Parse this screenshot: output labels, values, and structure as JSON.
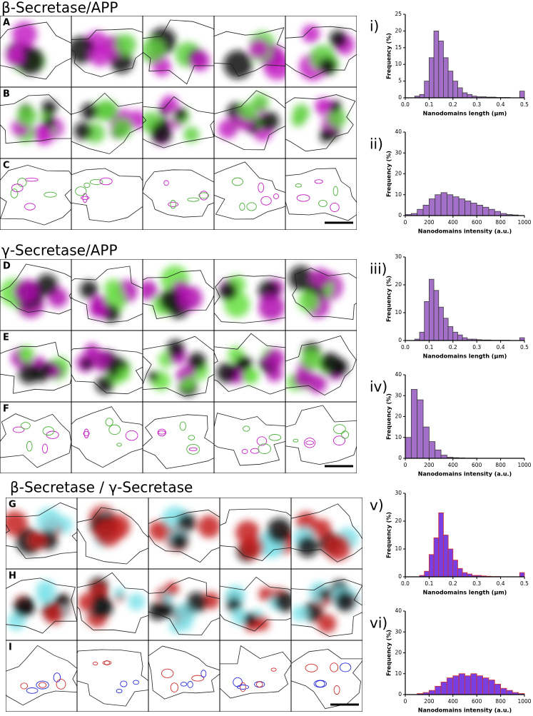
{
  "figure": {
    "sections": [
      {
        "title": "β-Secretase/APP",
        "rows": [
          "A",
          "B",
          "C"
        ]
      },
      {
        "title": "γ-Secretase/APP",
        "rows": [
          "D",
          "E",
          "F"
        ]
      },
      {
        "title": "β-Secretase / γ-Secretase",
        "rows": [
          "G",
          "H",
          "I"
        ]
      }
    ]
  },
  "chart_data": [
    {
      "type": "histogram",
      "label": "i)",
      "xlabel": "Nanodomains length (µm)",
      "ylabel": "Frequency (%)",
      "bins": [
        0,
        0.02,
        0.04,
        0.06,
        0.08,
        0.1,
        0.12,
        0.14,
        0.16,
        0.18,
        0.2,
        0.22,
        0.24,
        0.26,
        0.28,
        0.3,
        0.32,
        0.34,
        0.36,
        0.38,
        0.4,
        0.42,
        0.44,
        0.46,
        0.48,
        0.5
      ],
      "values": [
        0,
        0,
        0.5,
        1,
        5,
        12,
        20,
        17,
        12,
        8,
        5,
        3,
        1.5,
        1,
        0.5,
        0.3,
        0.3,
        0.2,
        0.2,
        0.1,
        0.1,
        0.1,
        0,
        0,
        2
      ],
      "xlim": [
        0,
        0.5
      ],
      "ylim": [
        0,
        25
      ],
      "xticks": [
        {
          "value": 0,
          "label": "0.0"
        },
        0.1,
        0.2,
        0.3,
        0.4,
        0.5
      ],
      "yticks": [
        0,
        5,
        10,
        15,
        20,
        25
      ],
      "color": "#a36fc9",
      "edgecolor": "#3d3d3d"
    },
    {
      "type": "histogram",
      "label": "ii)",
      "xlabel": "Nanodomains intensity (a.u.)",
      "ylabel": "Frequency (%)",
      "bins": [
        0,
        50,
        100,
        150,
        200,
        250,
        300,
        350,
        400,
        450,
        500,
        550,
        600,
        650,
        700,
        750,
        800,
        850,
        900,
        950,
        1000
      ],
      "values": [
        0.5,
        1,
        3,
        5,
        8,
        10,
        11,
        10,
        9,
        8,
        7,
        6,
        5,
        4,
        3,
        2,
        1,
        0.5,
        0.3,
        0
      ],
      "xlim": [
        0,
        1000
      ],
      "ylim": [
        0,
        40
      ],
      "xticks": [
        0,
        200,
        400,
        600,
        800,
        1000
      ],
      "yticks": [
        0,
        10,
        20,
        30,
        40
      ],
      "color": "#a36fc9",
      "edgecolor": "#3d3d3d"
    },
    {
      "type": "histogram",
      "label": "iii)",
      "xlabel": "Nanodomains length (µm)",
      "ylabel": "Frequency (%)",
      "bins": [
        0,
        0.02,
        0.04,
        0.06,
        0.08,
        0.1,
        0.12,
        0.14,
        0.16,
        0.18,
        0.2,
        0.22,
        0.24,
        0.26,
        0.28,
        0.3,
        0.32,
        0.34,
        0.36,
        0.38,
        0.4,
        0.42,
        0.44,
        0.46,
        0.48,
        0.5
      ],
      "values": [
        0,
        0,
        0.5,
        3,
        14,
        22,
        18,
        12,
        8,
        5,
        3,
        2,
        1,
        0.5,
        0.5,
        0.3,
        0.2,
        0.2,
        0.1,
        0.1,
        0.1,
        0.1,
        0,
        0,
        1
      ],
      "xlim": [
        0,
        0.5
      ],
      "ylim": [
        0,
        30
      ],
      "xticks": [
        {
          "value": 0,
          "label": "0.0"
        },
        0.1,
        0.2,
        0.3,
        0.4,
        0.5
      ],
      "yticks": [
        0,
        10,
        20,
        30
      ],
      "color": "#a36fc9",
      "edgecolor": "#3d3d3d"
    },
    {
      "type": "histogram",
      "label": "iv)",
      "xlabel": "Nanodomains intensity (a.u.)",
      "ylabel": "Frequency (%)",
      "bins": [
        0,
        50,
        100,
        150,
        200,
        250,
        300,
        350,
        400,
        450,
        500,
        550,
        600,
        650,
        700,
        750,
        800,
        850,
        900,
        950,
        1000
      ],
      "values": [
        10,
        33,
        28,
        15,
        8,
        4,
        1.5,
        0.5,
        0.3,
        0.2,
        0.1,
        0.1,
        0,
        0,
        0,
        0,
        0,
        0,
        0,
        0
      ],
      "xlim": [
        0,
        1000
      ],
      "ylim": [
        0,
        40
      ],
      "xticks": [
        0,
        200,
        400,
        600,
        800,
        1000
      ],
      "yticks": [
        0,
        10,
        20,
        30,
        40
      ],
      "color": "#a36fc9",
      "edgecolor": "#3d3d3d"
    },
    {
      "type": "histogram",
      "label": "v)",
      "xlabel": "Nanodomains length (µm)",
      "ylabel": "Frequency (%)",
      "bins": [
        0,
        0.02,
        0.04,
        0.06,
        0.08,
        0.1,
        0.12,
        0.14,
        0.16,
        0.18,
        0.2,
        0.22,
        0.24,
        0.26,
        0.28,
        0.3,
        0.32,
        0.34,
        0.36,
        0.38,
        0.4,
        0.42,
        0.44,
        0.46,
        0.48,
        0.5
      ],
      "values": [
        0,
        0,
        0,
        0.5,
        2,
        8,
        14,
        23,
        15,
        10,
        6,
        3,
        1.5,
        1,
        0.5,
        0.5,
        0.3,
        0.2,
        0.1,
        0.1,
        0,
        0,
        0,
        0,
        1.5
      ],
      "xlim": [
        0,
        0.5
      ],
      "ylim": [
        0,
        30
      ],
      "xticks": [
        {
          "value": 0,
          "label": "0.0"
        },
        0.1,
        0.2,
        0.3,
        0.4,
        0.5
      ],
      "yticks": [
        0,
        10,
        20,
        30
      ],
      "color": "#7a3fe0",
      "edgecolor": "#d03030"
    },
    {
      "type": "histogram",
      "label": "vi)",
      "xlabel": "Nanodomains intensity (a.u.)",
      "ylabel": "Frequency (%)",
      "bins": [
        0,
        50,
        100,
        150,
        200,
        250,
        300,
        350,
        400,
        450,
        500,
        550,
        600,
        650,
        700,
        750,
        800,
        850,
        900,
        950,
        1000
      ],
      "values": [
        0,
        0,
        0.5,
        1,
        2,
        4,
        6,
        8,
        9,
        10,
        9,
        10,
        9,
        8,
        7,
        5,
        3,
        2,
        1,
        0.5
      ],
      "xlim": [
        0,
        1000
      ],
      "ylim": [
        0,
        40
      ],
      "xticks": [
        0,
        200,
        400,
        600,
        800,
        1000
      ],
      "yticks": [
        0,
        10,
        20,
        30,
        40
      ],
      "color": "#7a3fe0",
      "edgecolor": "#d03030"
    }
  ]
}
